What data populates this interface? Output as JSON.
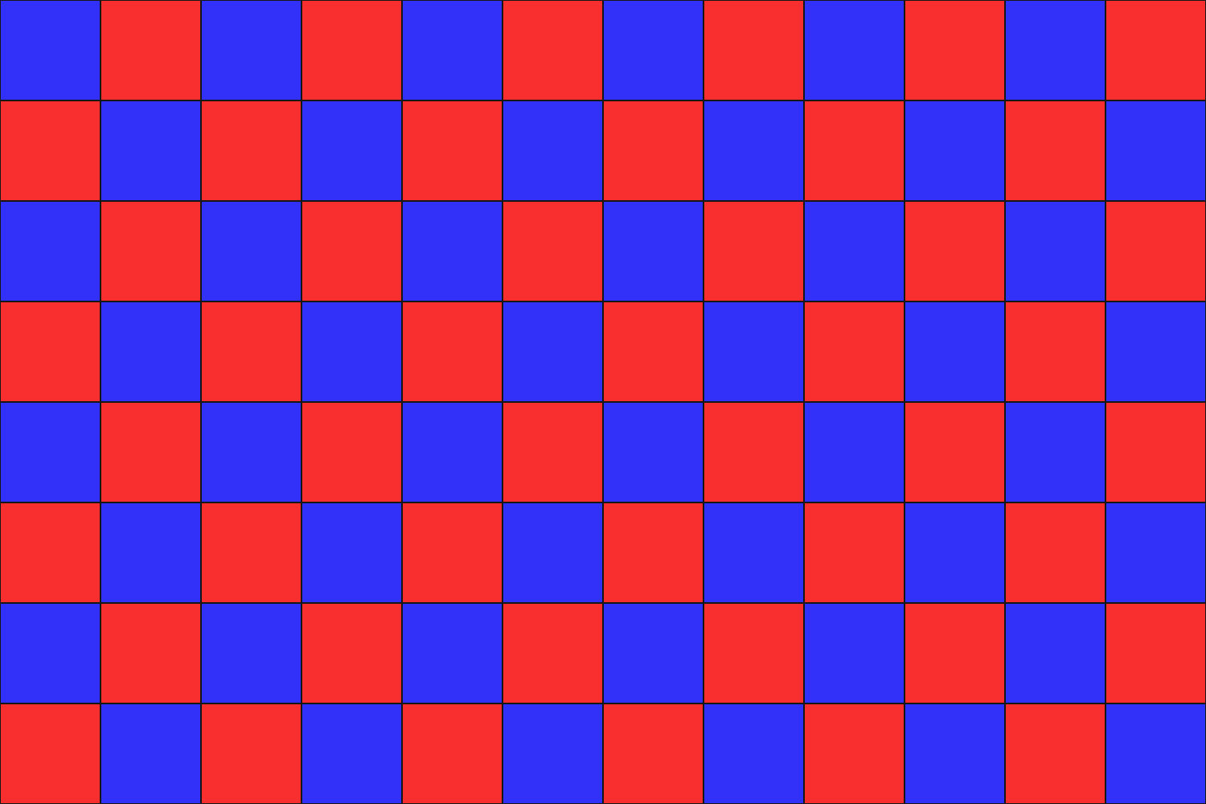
{
  "board": {
    "rows": 8,
    "cols": 12,
    "colors": {
      "blue": "#3131f9",
      "red": "#f92e2f",
      "grid_line": "#161616"
    },
    "cells": [
      [
        "blue",
        "red",
        "blue",
        "red",
        "blue",
        "red",
        "blue",
        "red",
        "blue",
        "red",
        "blue",
        "red"
      ],
      [
        "red",
        "blue",
        "red",
        "blue",
        "red",
        "blue",
        "red",
        "blue",
        "red",
        "blue",
        "red",
        "blue"
      ],
      [
        "blue",
        "red",
        "blue",
        "red",
        "blue",
        "red",
        "blue",
        "red",
        "blue",
        "red",
        "blue",
        "red"
      ],
      [
        "red",
        "blue",
        "red",
        "blue",
        "red",
        "blue",
        "red",
        "blue",
        "red",
        "blue",
        "red",
        "blue"
      ],
      [
        "blue",
        "red",
        "blue",
        "red",
        "blue",
        "red",
        "blue",
        "red",
        "blue",
        "red",
        "blue",
        "red"
      ],
      [
        "red",
        "blue",
        "red",
        "blue",
        "red",
        "blue",
        "red",
        "blue",
        "red",
        "blue",
        "red",
        "blue"
      ],
      [
        "blue",
        "red",
        "blue",
        "red",
        "blue",
        "red",
        "blue",
        "red",
        "blue",
        "red",
        "blue",
        "red"
      ],
      [
        "red",
        "blue",
        "red",
        "blue",
        "red",
        "blue",
        "red",
        "blue",
        "red",
        "blue",
        "red",
        "blue"
      ]
    ]
  }
}
